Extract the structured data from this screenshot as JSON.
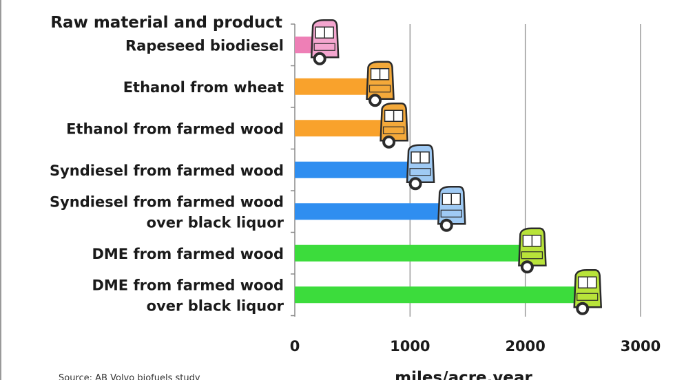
{
  "chart_data": {
    "type": "bar",
    "orientation": "horizontal",
    "header_label": "Raw material and product",
    "categories": [
      [
        "Rapeseed biodiesel"
      ],
      [
        "Ethanol from wheat"
      ],
      [
        "Ethanol from farmed wood"
      ],
      [
        "Syndiesel from farmed wood"
      ],
      [
        "Syndiesel from farmed wood",
        "over black liquor"
      ],
      [
        "DME from farmed wood"
      ],
      [
        "DME from farmed wood",
        "over black liquor"
      ]
    ],
    "values": [
      300,
      780,
      900,
      1130,
      1400,
      2100,
      2580
    ],
    "colors": [
      "#ee7fb6",
      "#f9a22c",
      "#f9a22c",
      "#2f8ef0",
      "#2f8ef0",
      "#3cdc3c",
      "#3cdc3c"
    ],
    "truck_colors": [
      "#f4a6cf",
      "#f4a93a",
      "#f4a93a",
      "#9fcaf4",
      "#9fcaf4",
      "#b8e33a",
      "#b8e33a"
    ],
    "xlabel": "miles/acre.year",
    "xlim": [
      0,
      3000
    ],
    "xticks": [
      "0",
      "1000",
      "2000",
      "3000"
    ],
    "grid": true,
    "source": "Source: AB Volvo biofuels study",
    "icon": "truck-icon"
  }
}
